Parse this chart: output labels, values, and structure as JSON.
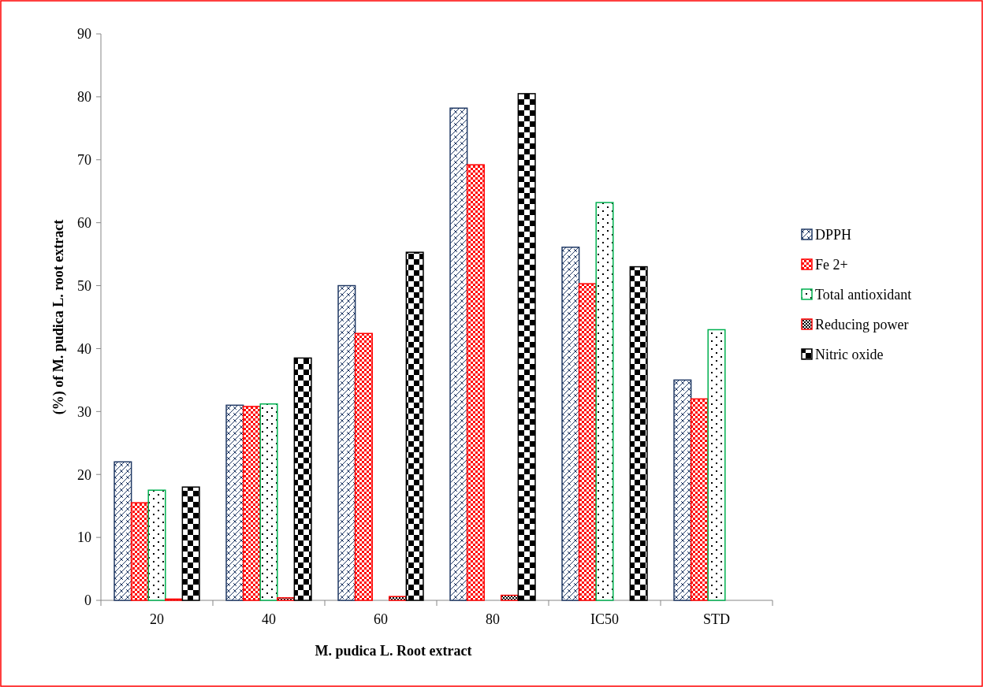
{
  "chart_data": {
    "type": "bar",
    "xlabel": "M. pudica L. Root extract",
    "ylabel": "(%) of M. pudica L. root extract",
    "categories": [
      "20",
      "40",
      "60",
      "80",
      "IC50",
      "STD"
    ],
    "series": [
      {
        "name": "DPPH",
        "color": "#1f3864",
        "values": [
          22,
          31,
          50,
          78.2,
          56.1,
          35
        ]
      },
      {
        "name": "Fe 2+",
        "color": "#ff0000",
        "values": [
          15.5,
          30.8,
          42.4,
          69.2,
          50.3,
          32
        ]
      },
      {
        "name": "Total antioxidant",
        "color": "#00b050",
        "values": [
          17.5,
          31.2,
          null,
          null,
          63.2,
          43
        ]
      },
      {
        "name": "Reducing power",
        "color": "#ff0000",
        "values": [
          0.2,
          0.4,
          0.6,
          0.8,
          null,
          null
        ]
      },
      {
        "name": "Nitric oxide",
        "color": "#000000",
        "values": [
          18,
          38.5,
          55.3,
          80.5,
          53,
          null
        ]
      }
    ],
    "ylim": [
      0,
      90
    ],
    "yticks": [
      0,
      10,
      20,
      30,
      40,
      50,
      60,
      70,
      80,
      90
    ],
    "grid": false,
    "legend": "right"
  }
}
